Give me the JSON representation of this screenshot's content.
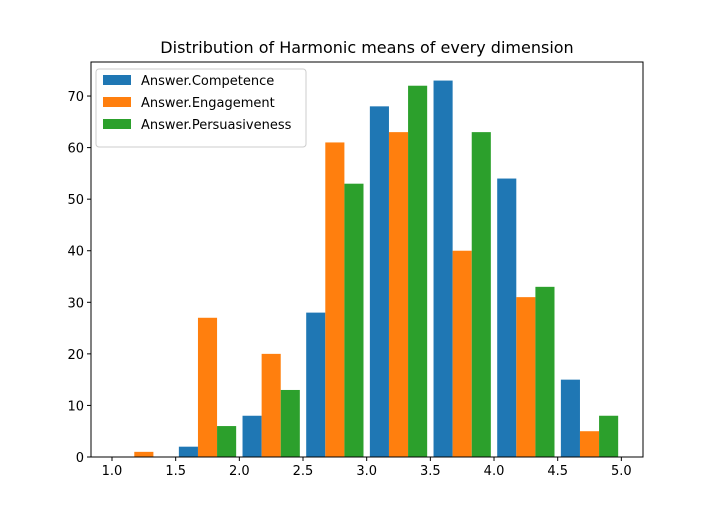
{
  "chart_data": {
    "type": "histogram",
    "title": "Distribution of Harmonic means of every dimension",
    "bins": [
      1.0,
      1.5,
      2.0,
      2.5,
      3.0,
      3.5,
      4.0,
      4.5,
      5.0
    ],
    "series": [
      {
        "name": "Answer.Competence",
        "color": "#1f77b4",
        "values": [
          0,
          2,
          8,
          28,
          68,
          73,
          54,
          15
        ]
      },
      {
        "name": "Answer.Engagement",
        "color": "#ff7f0e",
        "values": [
          1,
          27,
          20,
          61,
          63,
          40,
          31,
          5
        ]
      },
      {
        "name": "Answer.Persuasiveness",
        "color": "#2ca02c",
        "values": [
          0,
          6,
          13,
          53,
          72,
          63,
          33,
          8
        ]
      }
    ],
    "xlim": [
      0.835,
      5.17
    ],
    "ylim": [
      0,
      76.6
    ],
    "xticks": [
      {
        "value": 1.0,
        "label": "1.0"
      },
      {
        "value": 1.5,
        "label": "1.5"
      },
      {
        "value": 2.0,
        "label": "2.0"
      },
      {
        "value": 2.5,
        "label": "2.5"
      },
      {
        "value": 3.0,
        "label": "3.0"
      },
      {
        "value": 3.5,
        "label": "3.5"
      },
      {
        "value": 4.0,
        "label": "4.0"
      },
      {
        "value": 4.5,
        "label": "4.5"
      },
      {
        "value": 5.0,
        "label": "5.0"
      }
    ],
    "yticks": [
      0,
      10,
      20,
      30,
      40,
      50,
      60,
      70
    ],
    "legend": "upper left"
  }
}
